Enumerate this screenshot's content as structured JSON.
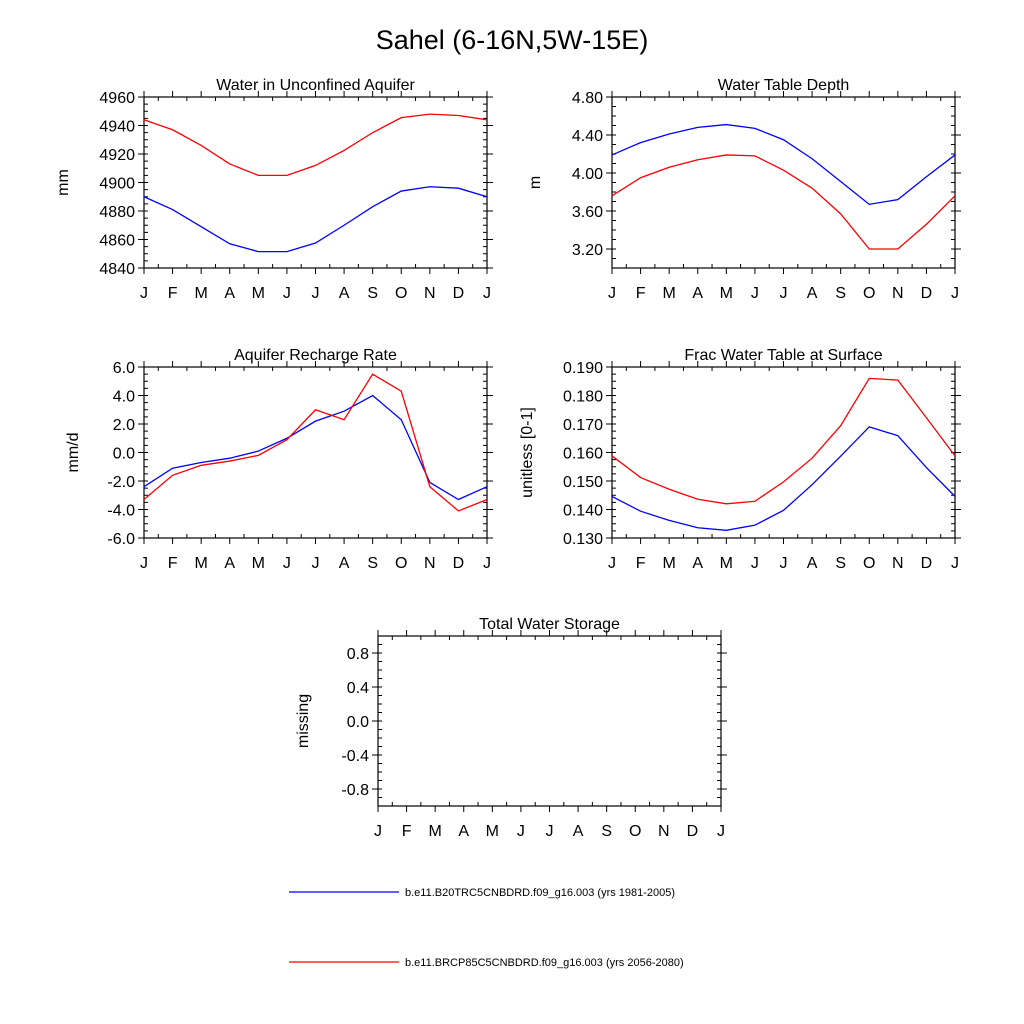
{
  "title": "Sahel (6-16N,5W-15E)",
  "colors": {
    "series_a": "#0000ff",
    "series_b": "#ff0000"
  },
  "months": [
    "J",
    "F",
    "M",
    "A",
    "M",
    "J",
    "J",
    "A",
    "S",
    "O",
    "N",
    "D",
    "J"
  ],
  "legend": [
    {
      "label": "b.e11.B20TRC5CNBDRD.f09_g16.003 (yrs 1981-2005)",
      "color": "#0000ff"
    },
    {
      "label": "b.e11.BRCP85C5CNBDRD.f09_g16.003 (yrs 2056-2080)",
      "color": "#ff0000"
    }
  ],
  "chart_data": [
    {
      "type": "line",
      "title": "Water in Unconfined Aquifer",
      "ylabel": "mm",
      "ylim": [
        4840,
        4960
      ],
      "yticks": [
        4840,
        4860,
        4880,
        4900,
        4920,
        4940,
        4960
      ],
      "ytick_labels": [
        "4840",
        "4860",
        "4880",
        "4900",
        "4920",
        "4940",
        "4960"
      ],
      "categories": [
        "J",
        "F",
        "M",
        "A",
        "M",
        "J",
        "J",
        "A",
        "S",
        "O",
        "N",
        "D",
        "J"
      ],
      "series": [
        {
          "name": "b.e11.B20TRC5CNBDRD.f09_g16.003 (yrs 1981-2005)",
          "values": [
            4890,
            4881,
            4869,
            4857,
            4851.5,
            4851.5,
            4857.5,
            4870,
            4883,
            4894,
            4897,
            4896,
            4890
          ]
        },
        {
          "name": "b.e11.BRCP85C5CNBDRD.f09_g16.003 (yrs 2056-2080)",
          "values": [
            4944,
            4937,
            4926,
            4913,
            4905,
            4905,
            4912,
            4922.5,
            4935,
            4945.5,
            4948,
            4947,
            4944
          ]
        }
      ]
    },
    {
      "type": "line",
      "title": "Water Table Depth",
      "ylabel": "m",
      "ylim": [
        3.0,
        4.8
      ],
      "yticks": [
        3.2,
        3.6,
        4.0,
        4.4,
        4.8
      ],
      "ytick_labels": [
        "3.20",
        "3.60",
        "4.00",
        "4.40",
        "4.80"
      ],
      "categories": [
        "J",
        "F",
        "M",
        "A",
        "M",
        "J",
        "J",
        "A",
        "S",
        "O",
        "N",
        "D",
        "J"
      ],
      "series": [
        {
          "name": "b.e11.B20TRC5CNBDRD.f09_g16.003 (yrs 1981-2005)",
          "values": [
            4.19,
            4.32,
            4.41,
            4.48,
            4.51,
            4.47,
            4.35,
            4.15,
            3.91,
            3.67,
            3.72,
            3.96,
            4.19
          ]
        },
        {
          "name": "b.e11.BRCP85C5CNBDRD.f09_g16.003 (yrs 2056-2080)",
          "values": [
            3.76,
            3.95,
            4.06,
            4.14,
            4.19,
            4.18,
            4.03,
            3.84,
            3.57,
            3.2,
            3.2,
            3.46,
            3.76
          ]
        }
      ]
    },
    {
      "type": "line",
      "title": "Aquifer Recharge Rate",
      "ylabel": "mm/d",
      "ylim": [
        -6.0,
        6.0
      ],
      "yticks": [
        -6.0,
        -4.0,
        -2.0,
        0.0,
        2.0,
        4.0,
        6.0
      ],
      "ytick_labels": [
        "-6.0",
        "-4.0",
        "-2.0",
        "0.0",
        "2.0",
        "4.0",
        "6.0"
      ],
      "categories": [
        "J",
        "F",
        "M",
        "A",
        "M",
        "J",
        "J",
        "A",
        "S",
        "O",
        "N",
        "D",
        "J"
      ],
      "series": [
        {
          "name": "b.e11.B20TRC5CNBDRD.f09_g16.003 (yrs 1981-2005)",
          "values": [
            -2.4,
            -1.1,
            -0.7,
            -0.4,
            0.1,
            1.0,
            2.2,
            2.9,
            4.0,
            2.3,
            -2.1,
            -3.3,
            -2.4
          ]
        },
        {
          "name": "b.e11.BRCP85C5CNBDRD.f09_g16.003 (yrs 2056-2080)",
          "values": [
            -3.3,
            -1.6,
            -0.9,
            -0.6,
            -0.2,
            0.9,
            3.0,
            2.3,
            5.5,
            4.3,
            -2.4,
            -4.1,
            -3.3
          ]
        }
      ]
    },
    {
      "type": "line",
      "title": "Frac Water Table at Surface",
      "ylabel": "unitless [0-1]",
      "ylim": [
        0.13,
        0.19
      ],
      "yticks": [
        0.13,
        0.14,
        0.15,
        0.16,
        0.17,
        0.18,
        0.19
      ],
      "ytick_labels": [
        "0.130",
        "0.140",
        "0.150",
        "0.160",
        "0.170",
        "0.180",
        "0.190"
      ],
      "categories": [
        "J",
        "F",
        "M",
        "A",
        "M",
        "J",
        "J",
        "A",
        "S",
        "O",
        "N",
        "D",
        "J"
      ],
      "series": [
        {
          "name": "b.e11.B20TRC5CNBDRD.f09_g16.003 (yrs 1981-2005)",
          "values": [
            0.1446,
            0.1394,
            0.1362,
            0.1336,
            0.1327,
            0.1345,
            0.1397,
            0.1487,
            0.1587,
            0.169,
            0.1659,
            0.1547,
            0.1446
          ]
        },
        {
          "name": "b.e11.BRCP85C5CNBDRD.f09_g16.003 (yrs 2056-2080)",
          "values": [
            0.1588,
            0.1512,
            0.1471,
            0.1436,
            0.142,
            0.1429,
            0.1497,
            0.158,
            0.1694,
            0.186,
            0.1854,
            0.1722,
            0.1588
          ]
        }
      ]
    },
    {
      "type": "line",
      "title": "Total Water Storage",
      "ylabel": "missing",
      "ylim": [
        -1.0,
        1.0
      ],
      "yticks": [
        -0.8,
        -0.4,
        0.0,
        0.4,
        0.8
      ],
      "ytick_labels": [
        "-0.8",
        "-0.4",
        "0.0",
        "0.4",
        "0.8"
      ],
      "categories": [
        "J",
        "F",
        "M",
        "A",
        "M",
        "J",
        "J",
        "A",
        "S",
        "O",
        "N",
        "D",
        "J"
      ],
      "series": []
    }
  ]
}
